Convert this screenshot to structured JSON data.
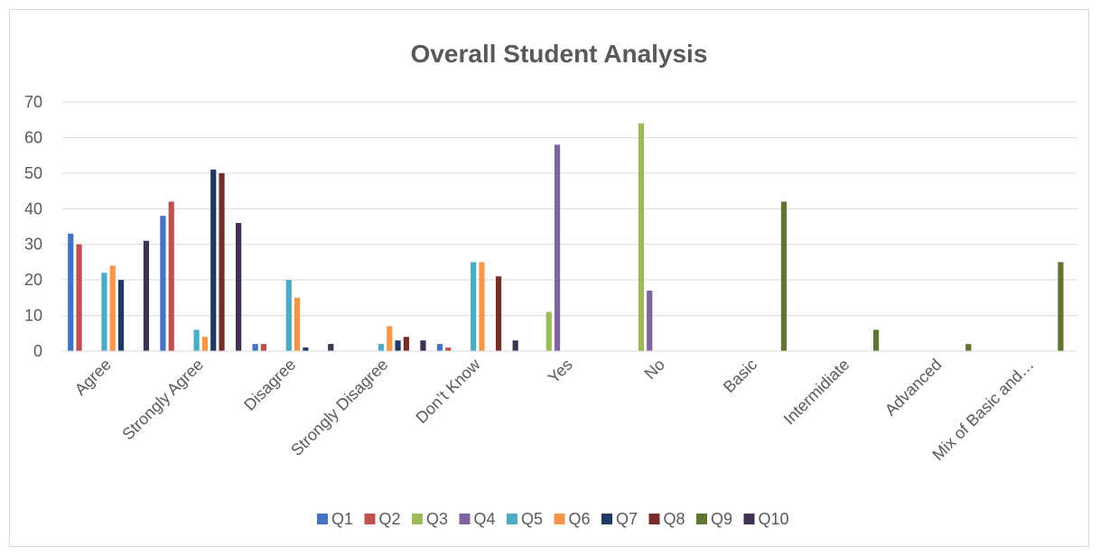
{
  "chart_data": {
    "type": "bar",
    "title": "Overall Student Analysis",
    "xlabel": "",
    "ylabel": "",
    "ylim": [
      0,
      70
    ],
    "yticks": [
      0,
      10,
      20,
      30,
      40,
      50,
      60,
      70
    ],
    "grid": true,
    "legend": "bottom",
    "categories": [
      "Agree",
      "Strongly Agree",
      "Disagree",
      "Strongly Disagree",
      "Don’t Know",
      "Yes",
      "No",
      "Basic",
      "Intermidiate",
      "Advanced",
      "Mix of Basic and…"
    ],
    "series": [
      {
        "name": "Q1",
        "color": "#4472C4",
        "values": [
          33,
          38,
          2,
          0,
          2,
          0,
          0,
          0,
          0,
          0,
          0
        ]
      },
      {
        "name": "Q2",
        "color": "#C0504D",
        "values": [
          30,
          42,
          2,
          0,
          1,
          0,
          0,
          0,
          0,
          0,
          0
        ]
      },
      {
        "name": "Q3",
        "color": "#9BBB59",
        "values": [
          0,
          0,
          0,
          0,
          0,
          11,
          64,
          0,
          0,
          0,
          0
        ]
      },
      {
        "name": "Q4",
        "color": "#8064A2",
        "values": [
          0,
          0,
          0,
          0,
          0,
          58,
          17,
          0,
          0,
          0,
          0
        ]
      },
      {
        "name": "Q5",
        "color": "#4BACC6",
        "values": [
          22,
          6,
          20,
          2,
          25,
          0,
          0,
          0,
          0,
          0,
          0
        ]
      },
      {
        "name": "Q6",
        "color": "#F79646",
        "values": [
          24,
          4,
          15,
          7,
          25,
          0,
          0,
          0,
          0,
          0,
          0
        ]
      },
      {
        "name": "Q7",
        "color": "#1F3864",
        "values": [
          20,
          51,
          1,
          3,
          0,
          0,
          0,
          0,
          0,
          0,
          0
        ]
      },
      {
        "name": "Q8",
        "color": "#772C2A",
        "values": [
          0,
          50,
          0,
          4,
          21,
          0,
          0,
          0,
          0,
          0,
          0
        ]
      },
      {
        "name": "Q9",
        "color": "#5F7530",
        "values": [
          0,
          0,
          0,
          0,
          0,
          0,
          0,
          42,
          6,
          2,
          25
        ]
      },
      {
        "name": "Q10",
        "color": "#3F3151",
        "values": [
          31,
          36,
          2,
          3,
          3,
          0,
          0,
          0,
          0,
          0,
          0
        ]
      }
    ]
  }
}
